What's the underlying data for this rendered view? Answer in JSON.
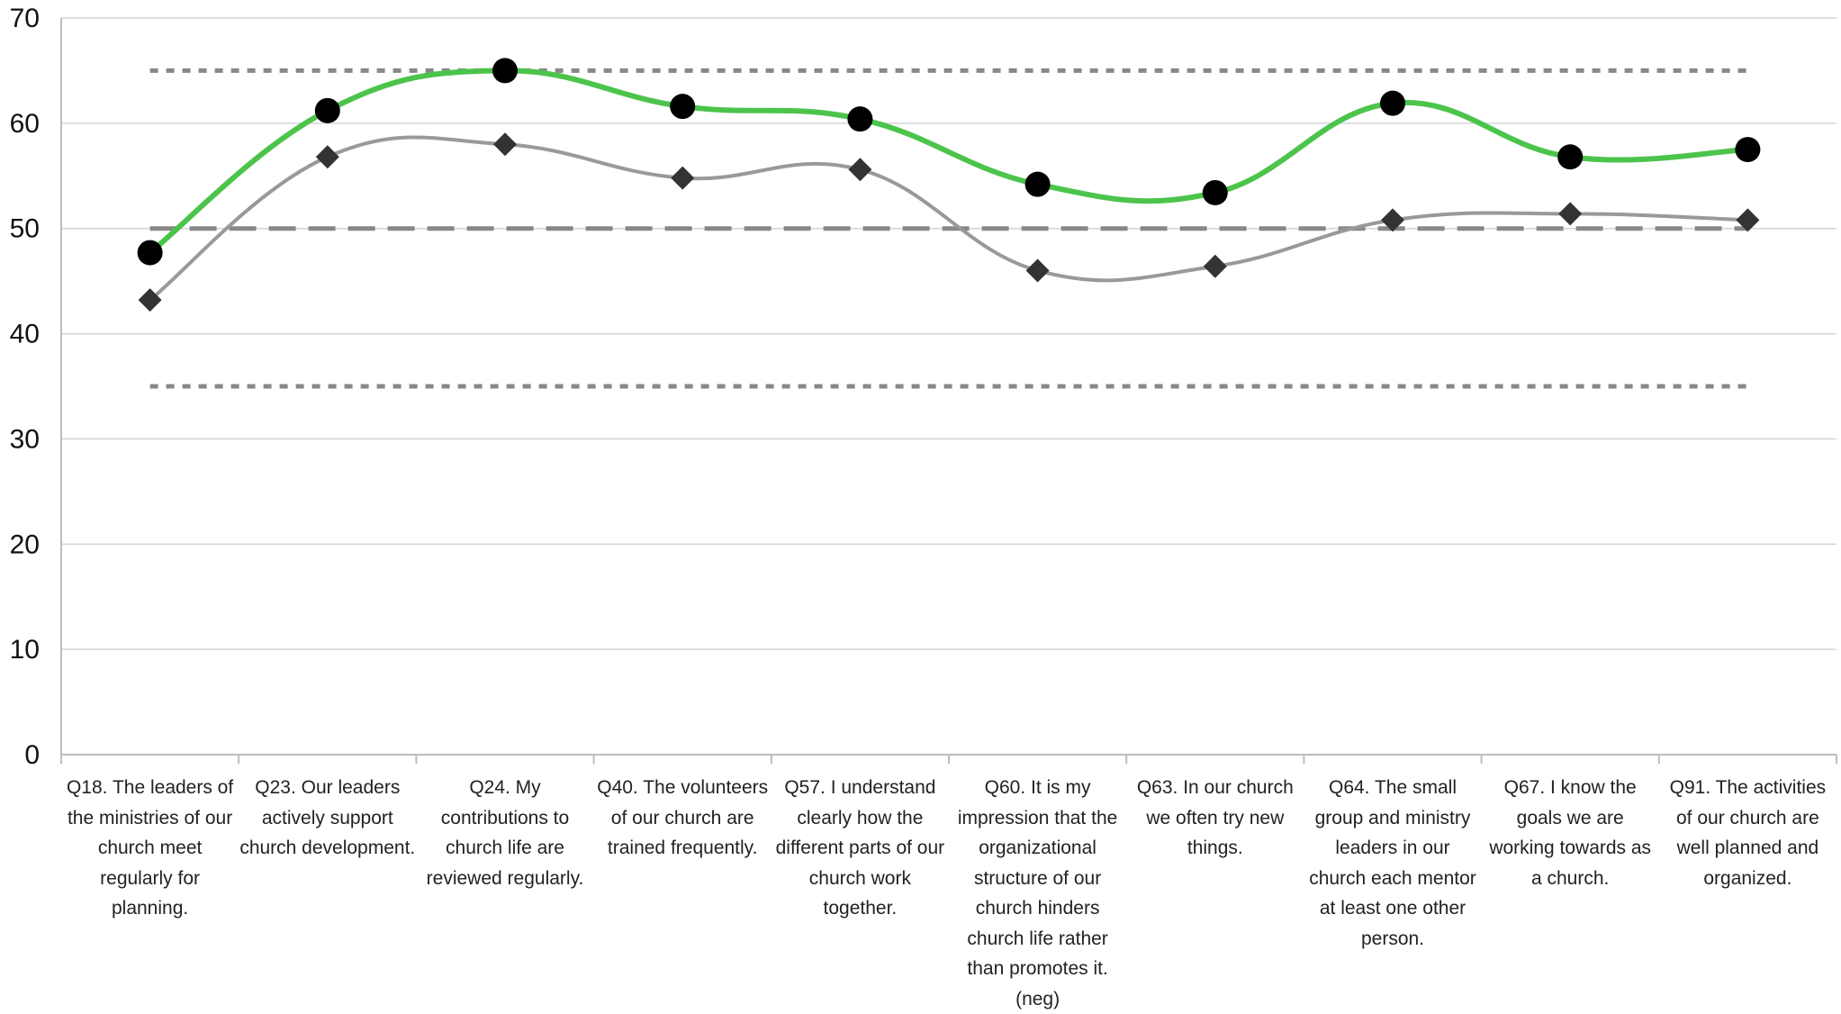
{
  "chart_data": {
    "type": "line",
    "categories": [
      "Q18. The leaders of the ministries of our church meet regularly for planning.",
      "Q23. Our leaders actively support church development.",
      "Q24. My contributions to church life are reviewed regularly.",
      "Q40. The volunteers of our church are trained frequently.",
      "Q57. I understand clearly how the different parts of our church work together.",
      "Q60. It is my impression that the organizational structure of our church hinders church life rather than promotes it. (neg)",
      "Q63. In our church we often try new things.",
      "Q64. The small group and ministry leaders in our church each mentor at least one other person.",
      "Q67. I know the goals we are working towards as a church.",
      "Q91. The activities of our church are well planned and organized."
    ],
    "series": [
      {
        "values": [
          47.7,
          61.2,
          65.0,
          61.6,
          60.4,
          54.2,
          53.4,
          61.9,
          56.8,
          57.5
        ],
        "color": "#4cc44c",
        "marker": "circle"
      },
      {
        "values": [
          43.2,
          56.8,
          58.0,
          54.8,
          55.6,
          46.0,
          46.4,
          50.8,
          51.4,
          50.8
        ],
        "color": "#999999",
        "marker": "diamond"
      }
    ],
    "reference_lines": [
      {
        "value": 65,
        "style": "dotted",
        "color": "#888888"
      },
      {
        "value": 50,
        "style": "dashed",
        "color": "#888888"
      },
      {
        "value": 35,
        "style": "dotted",
        "color": "#888888"
      }
    ],
    "ylim": [
      0,
      70
    ],
    "yticks": [
      0,
      10,
      20,
      30,
      40,
      50,
      60,
      70
    ],
    "ytick_labels": [
      "0",
      "10",
      "20",
      "30",
      "40",
      "50",
      "60",
      "70"
    ],
    "grid": true,
    "legend": "none"
  }
}
